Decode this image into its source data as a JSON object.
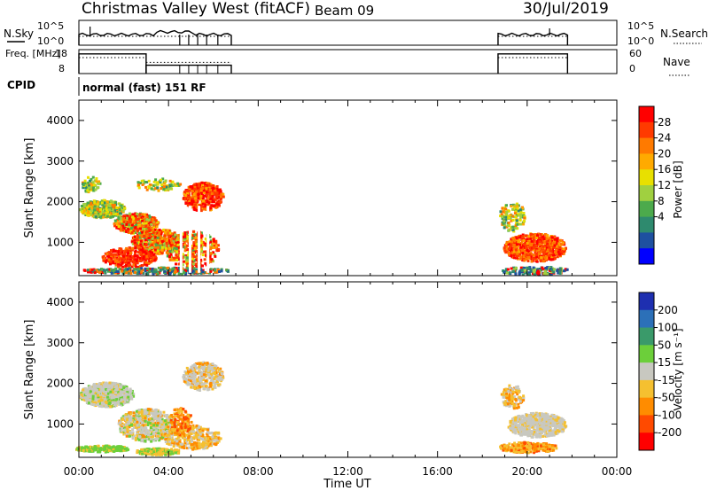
{
  "header": {
    "title": "Christmas Valley West (fitACF)",
    "beam": "Beam 09",
    "date": "30/Jul/2019"
  },
  "cpid_text": "normal (fast) 151 RF",
  "chart_data": [
    {
      "type": "line",
      "panel": "N.Sky / N.Search",
      "left_label": "N.Sky",
      "right_label": "N.Search",
      "left_ticks": [
        "10^5",
        "10^0"
      ],
      "right_ticks": [
        "10^5",
        "10^0"
      ],
      "x_range_hours": [
        0,
        24
      ],
      "segments_hours": [
        [
          0.0,
          6.8
        ],
        [
          18.7,
          21.8
        ]
      ]
    },
    {
      "type": "line",
      "panel": "Freq. / Nave",
      "left_label": "Freq. [MHz]",
      "right_label": "Nave",
      "left_ticks": [
        "18",
        "8"
      ],
      "right_ticks": [
        "60",
        "0"
      ],
      "freq_steps": [
        {
          "x": [
            0.0,
            3.0
          ],
          "value": 16.2
        },
        {
          "x": [
            3.0,
            6.8
          ],
          "value": 11.5
        },
        {
          "x": [
            18.7,
            21.8
          ],
          "value": 16.2
        }
      ],
      "nave_steps": [
        {
          "x": [
            0.0,
            3.0
          ],
          "value": 40
        },
        {
          "x": [
            3.0,
            6.8
          ],
          "value": 28
        },
        {
          "x": [
            18.7,
            21.8
          ],
          "value": 40
        }
      ]
    },
    {
      "type": "heatmap",
      "panel": "Power",
      "ylabel": "Slant Range [km]",
      "ylim": [
        180,
        4500
      ],
      "yticks": [
        1000,
        2000,
        3000,
        4000
      ],
      "xlim": [
        0,
        24
      ],
      "colorbar_label": "Power [dB]",
      "colorbar_ticks": [
        "28",
        "24",
        "20",
        "16",
        "12",
        "8",
        "4"
      ],
      "colorbar_colors": [
        "#ff0000",
        "#ff3a00",
        "#ff7a00",
        "#ffaa00",
        "#e8e000",
        "#a0d040",
        "#4caa4c",
        "#2e8a6e",
        "#1e50a0",
        "#0000ff"
      ]
    },
    {
      "type": "heatmap",
      "panel": "Velocity",
      "ylabel": "Slant Range [km]",
      "ylim": [
        180,
        4500
      ],
      "yticks": [
        1000,
        2000,
        3000,
        4000
      ],
      "xlim": [
        0,
        24
      ],
      "xlabel": "Time UT",
      "xticks": [
        "00:00",
        "04:00",
        "08:00",
        "12:00",
        "16:00",
        "20:00",
        "00:00"
      ],
      "colorbar_label": "Velocity [m s⁻¹]",
      "colorbar_ticks": [
        "200",
        "100",
        "50",
        "15",
        "-15",
        "-50",
        "-100",
        "-200"
      ],
      "colorbar_colors": [
        "#1e2fb0",
        "#2c70b8",
        "#3a9a6a",
        "#6ccf3a",
        "#c8c8c0",
        "#f5c030",
        "#ff8c00",
        "#ff4a00",
        "#ff0000"
      ]
    }
  ],
  "labels": {
    "cpid": "CPID"
  }
}
